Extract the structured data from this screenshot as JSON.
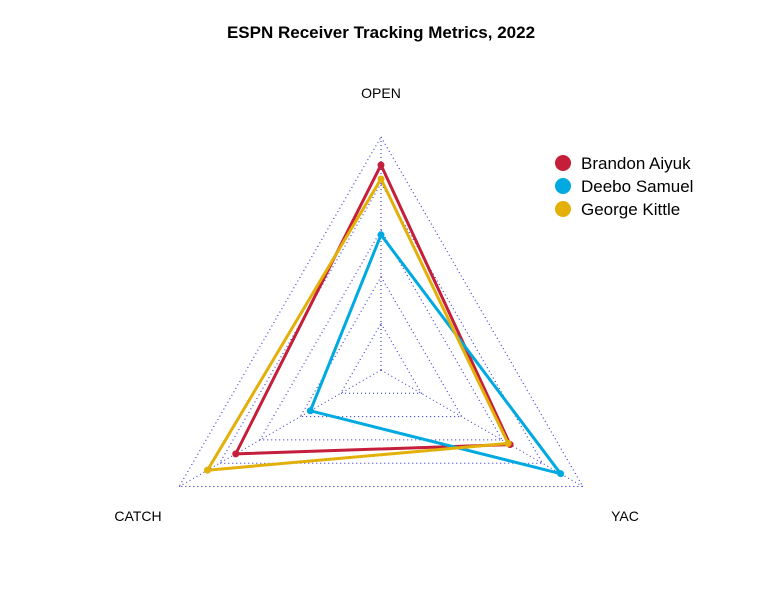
{
  "chart_data": {
    "type": "radar",
    "title": "ESPN Receiver Tracking Metrics, 2022",
    "axes": [
      "OPEN",
      "YAC",
      "CATCH"
    ],
    "range": [
      0,
      100
    ],
    "grid_levels": 5,
    "grid_style": "dotted",
    "grid_color": "#1a1acc",
    "legend_position": "top-right",
    "series": [
      {
        "name": "Brandon Aiyuk",
        "color": "#C41E3A",
        "values": [
          88,
          64,
          72
        ]
      },
      {
        "name": "Deebo Samuel",
        "color": "#00A9E0",
        "values": [
          58,
          89,
          35
        ]
      },
      {
        "name": "George Kittle",
        "color": "#E3B00A",
        "values": [
          82,
          63,
          86
        ]
      }
    ]
  }
}
